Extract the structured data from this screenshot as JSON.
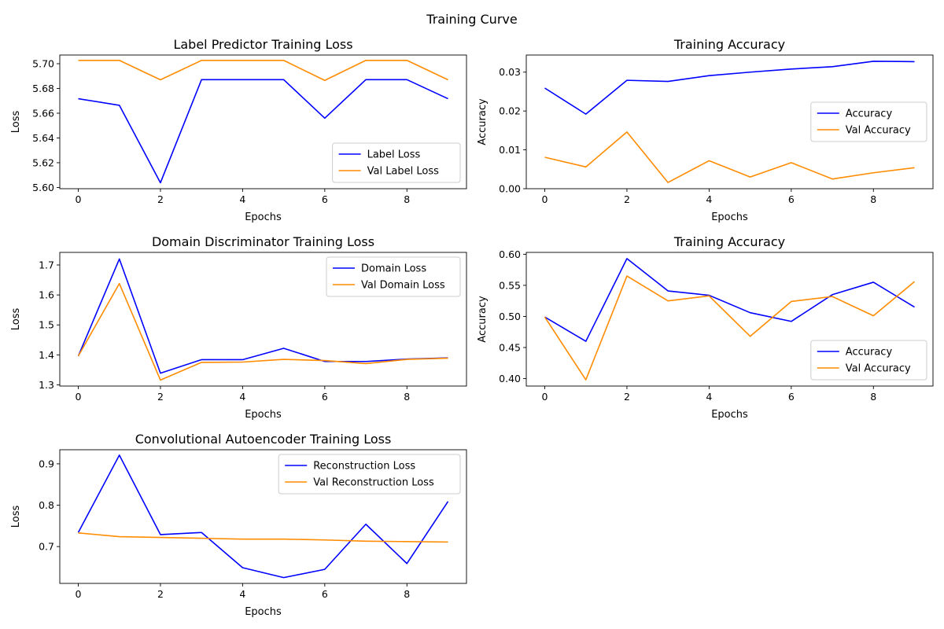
{
  "figure": {
    "suptitle": "Training Curve"
  },
  "colors": {
    "train": "#0000ff",
    "val": "#ff8c00",
    "axis": "#000000"
  },
  "chart_data": [
    {
      "type": "line",
      "title": "Label Predictor Training Loss",
      "xlabel": "Epochs",
      "ylabel": "Loss",
      "x": [
        0,
        1,
        2,
        3,
        4,
        5,
        6,
        7,
        8,
        9
      ],
      "xlim": [
        -0.45,
        9.45
      ],
      "ylim": [
        5.599,
        5.707
      ],
      "xticks": [
        0,
        2,
        4,
        6,
        8
      ],
      "yticks": [
        5.6,
        5.62,
        5.64,
        5.66,
        5.68,
        5.7
      ],
      "ytick_decimals": 2,
      "legend": "lower-right",
      "series": [
        {
          "name": "Label Loss",
          "color": "#0000ff",
          "values": [
            5.6717,
            5.6664,
            5.6038,
            5.6871,
            5.6871,
            5.6871,
            5.656,
            5.6871,
            5.6871,
            5.6717
          ]
        },
        {
          "name": "Val Label Loss",
          "color": "#ff8c00",
          "values": [
            5.7027,
            5.7027,
            5.687,
            5.7027,
            5.7027,
            5.7027,
            5.6865,
            5.7027,
            5.7027,
            5.687
          ]
        }
      ]
    },
    {
      "type": "line",
      "title": "Training Accuracy",
      "xlabel": "Epochs",
      "ylabel": "Accuracy",
      "x": [
        0,
        1,
        2,
        3,
        4,
        5,
        6,
        7,
        8,
        9
      ],
      "xlim": [
        -0.45,
        9.45
      ],
      "ylim": [
        0.0,
        0.0344
      ],
      "xticks": [
        0,
        2,
        4,
        6,
        8
      ],
      "yticks": [
        0.0,
        0.01,
        0.02,
        0.03
      ],
      "ytick_decimals": 2,
      "legend": "center-right",
      "series": [
        {
          "name": "Accuracy",
          "color": "#0000ff",
          "values": [
            0.0259,
            0.0192,
            0.0279,
            0.0276,
            0.0291,
            0.03,
            0.0308,
            0.0314,
            0.0328,
            0.0327
          ]
        },
        {
          "name": "Val Accuracy",
          "color": "#ff8c00",
          "values": [
            0.0081,
            0.0056,
            0.0146,
            0.0016,
            0.0072,
            0.003,
            0.0067,
            0.0025,
            0.0041,
            0.0054
          ]
        }
      ]
    },
    {
      "type": "line",
      "title": "Domain Discriminator Training Loss",
      "xlabel": "Epochs",
      "ylabel": "Loss",
      "x": [
        0,
        1,
        2,
        3,
        4,
        5,
        6,
        7,
        8,
        9
      ],
      "xlim": [
        -0.45,
        9.45
      ],
      "ylim": [
        1.296,
        1.742
      ],
      "xticks": [
        0,
        2,
        4,
        6,
        8
      ],
      "yticks": [
        1.3,
        1.4,
        1.5,
        1.6,
        1.7
      ],
      "ytick_decimals": 1,
      "legend": "top-right",
      "series": [
        {
          "name": "Domain Loss",
          "color": "#0000ff",
          "values": [
            1.396,
            1.72,
            1.339,
            1.384,
            1.384,
            1.422,
            1.378,
            1.378,
            1.386,
            1.39
          ]
        },
        {
          "name": "Val Domain Loss",
          "color": "#ff8c00",
          "values": [
            1.396,
            1.638,
            1.316,
            1.375,
            1.376,
            1.385,
            1.381,
            1.371,
            1.385,
            1.389
          ]
        }
      ]
    },
    {
      "type": "line",
      "title": "Training Accuracy",
      "xlabel": "Epochs",
      "ylabel": "Accuracy",
      "x": [
        0,
        1,
        2,
        3,
        4,
        5,
        6,
        7,
        8,
        9
      ],
      "xlim": [
        -0.45,
        9.45
      ],
      "ylim": [
        0.388,
        0.603
      ],
      "xticks": [
        0,
        2,
        4,
        6,
        8
      ],
      "yticks": [
        0.4,
        0.45,
        0.5,
        0.55,
        0.6
      ],
      "ytick_decimals": 2,
      "legend": "lower-right",
      "series": [
        {
          "name": "Accuracy",
          "color": "#0000ff",
          "values": [
            0.499,
            0.46,
            0.593,
            0.541,
            0.534,
            0.506,
            0.492,
            0.535,
            0.555,
            0.515
          ]
        },
        {
          "name": "Val Accuracy",
          "color": "#ff8c00",
          "values": [
            0.499,
            0.398,
            0.565,
            0.525,
            0.533,
            0.468,
            0.524,
            0.532,
            0.501,
            0.556
          ]
        }
      ]
    },
    {
      "type": "line",
      "title": "Convolutional Autoencoder Training Loss",
      "xlabel": "Epochs",
      "ylabel": "Loss",
      "x": [
        0,
        1,
        2,
        3,
        4,
        5,
        6,
        7,
        8,
        9
      ],
      "xlim": [
        -0.45,
        9.45
      ],
      "ylim": [
        0.611,
        0.934
      ],
      "xticks": [
        0,
        2,
        4,
        6,
        8
      ],
      "yticks": [
        0.7,
        0.8,
        0.9
      ],
      "ytick_decimals": 1,
      "legend": "top-right",
      "series": [
        {
          "name": "Reconstruction Loss",
          "color": "#0000ff",
          "values": [
            0.734,
            0.921,
            0.729,
            0.734,
            0.649,
            0.625,
            0.645,
            0.754,
            0.659,
            0.809
          ]
        },
        {
          "name": "Val Reconstruction Loss",
          "color": "#ff8c00",
          "values": [
            0.733,
            0.724,
            0.722,
            0.72,
            0.718,
            0.718,
            0.716,
            0.713,
            0.712,
            0.711
          ]
        }
      ]
    }
  ]
}
